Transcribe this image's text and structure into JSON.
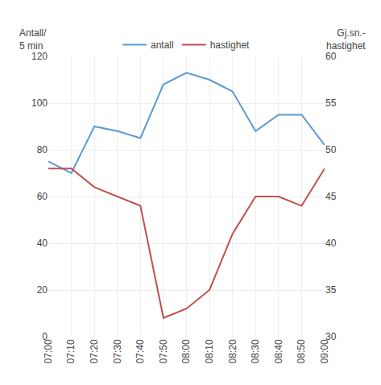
{
  "chart_data": {
    "type": "line",
    "categories": [
      "07:00",
      "07:10",
      "07:20",
      "07:30",
      "07:40",
      "07:50",
      "08:00",
      "08:10",
      "08:20",
      "08:30",
      "08:40",
      "08:50",
      "09:00"
    ],
    "series": [
      {
        "name": "antall",
        "color": "#5B9BD5",
        "values": [
          75,
          70,
          90,
          88,
          85,
          108,
          113,
          110,
          105,
          88,
          95,
          95,
          82
        ]
      },
      {
        "name": "hastighet",
        "color": "#C0504D",
        "axis": "y2",
        "values": [
          48,
          48,
          46,
          45,
          44,
          32,
          33,
          35,
          41,
          45,
          45,
          44,
          48
        ]
      }
    ],
    "ylabel": "Antall/\n5 min",
    "y2label": "Gj.sn.-\nhastighet",
    "ylim": [
      0,
      120
    ],
    "yticks": [
      0,
      20,
      40,
      60,
      80,
      100,
      120
    ],
    "y2lim": [
      30,
      60
    ],
    "y2ticks": [
      30,
      35,
      40,
      45,
      50,
      55,
      60
    ],
    "grid": true,
    "legend": "top"
  }
}
